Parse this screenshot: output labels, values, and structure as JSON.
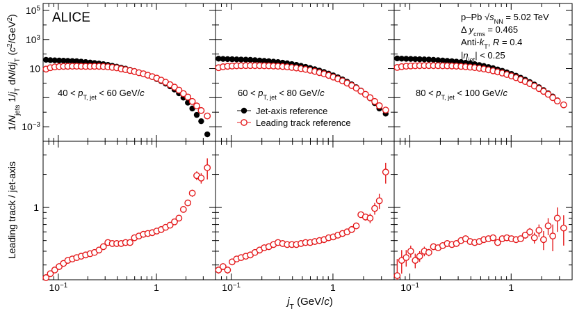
{
  "chart_data": {
    "type": "scatter",
    "x_scale": "log",
    "xlim": [
      0.07,
      4.0
    ],
    "xlabel": "j_T (GeV/c)",
    "xtick_labels": [
      "10^-1",
      "1"
    ],
    "experiment": "ALICE",
    "system_lines": [
      "p–Pb √s_NN = 5.02 TeV",
      "Δ y_cms = 0.465",
      "Anti-k_T, R = 0.4",
      "|η_jet| < 0.25"
    ],
    "legend": [
      {
        "name": "Jet-axis reference",
        "marker": "filled-circle",
        "color": "#000000"
      },
      {
        "name": "Leading track reference",
        "marker": "open-circle",
        "color": "#e41a1c"
      }
    ],
    "top_panel": {
      "ylabel": "1/N_jets 1/j_T dN/dj_T (c^2/GeV^2)",
      "y_scale": "log",
      "ylim": [
        0.0001,
        300000
      ],
      "ytick_labels": [
        "10^-3",
        "10",
        "10^3",
        "10^5"
      ]
    },
    "bottom_panel": {
      "ylabel": "Leading track / jet-axis",
      "y_scale": "log",
      "ylim": [
        0.22,
        4.0
      ],
      "ytick_labels": [
        "1"
      ]
    },
    "panels": [
      {
        "label": "40 < p_T, jet < 60 GeV/c",
        "x": [
          0.075,
          0.083,
          0.092,
          0.102,
          0.113,
          0.125,
          0.139,
          0.154,
          0.171,
          0.19,
          0.211,
          0.234,
          0.26,
          0.288,
          0.32,
          0.355,
          0.394,
          0.437,
          0.485,
          0.538,
          0.597,
          0.663,
          0.736,
          0.817,
          0.907,
          1.007,
          1.118,
          1.241,
          1.377,
          1.528,
          1.696,
          1.883,
          2.09,
          2.32,
          2.575,
          2.858,
          3.3
        ],
        "jet_axis": [
          40,
          38,
          37,
          36,
          35,
          34,
          33,
          32,
          30,
          28,
          26,
          24,
          22,
          20,
          18,
          15.5,
          13.5,
          11.5,
          9.8,
          8.2,
          6.8,
          5.5,
          4.4,
          3.4,
          2.6,
          1.9,
          1.35,
          0.92,
          0.6,
          0.36,
          0.2,
          0.1,
          0.045,
          0.018,
          0.0065,
          0.0024,
          0.0003
        ],
        "leading_track": [
          9.2,
          11.5,
          13,
          13.7,
          14.2,
          14.4,
          14.5,
          14.5,
          14.4,
          14.2,
          14.2,
          14.4,
          14.3,
          13.9,
          13.2,
          12.2,
          11.2,
          9.5,
          8.4,
          7.3,
          6.3,
          5.2,
          4.4,
          3.5,
          2.8,
          2.2,
          1.6,
          1.15,
          0.78,
          0.53,
          0.33,
          0.19,
          0.11,
          0.055,
          0.027,
          0.013,
          0.0055
        ],
        "ratio": [
          0.23,
          0.25,
          0.27,
          0.29,
          0.31,
          0.33,
          0.34,
          0.35,
          0.36,
          0.37,
          0.38,
          0.39,
          0.41,
          0.44,
          0.48,
          0.47,
          0.47,
          0.47,
          0.48,
          0.48,
          0.53,
          0.55,
          0.57,
          0.58,
          0.59,
          0.61,
          0.63,
          0.66,
          0.69,
          0.74,
          0.8,
          0.96,
          1.1,
          1.35,
          1.95,
          1.85,
          2.3
        ],
        "ratio_err": [
          0.01,
          0.01,
          0.01,
          0.01,
          0.01,
          0.01,
          0.01,
          0.01,
          0.01,
          0.01,
          0.01,
          0.01,
          0.01,
          0.01,
          0.01,
          0.01,
          0.01,
          0.01,
          0.01,
          0.01,
          0.01,
          0.01,
          0.01,
          0.01,
          0.01,
          0.01,
          0.01,
          0.01,
          0.01,
          0.02,
          0.02,
          0.04,
          0.06,
          0.1,
          0.18,
          0.2,
          0.5
        ]
      },
      {
        "label": "60 < p_T, jet < 80 GeV/c",
        "x": [
          0.075,
          0.083,
          0.092,
          0.102,
          0.113,
          0.125,
          0.139,
          0.154,
          0.171,
          0.19,
          0.211,
          0.234,
          0.26,
          0.288,
          0.32,
          0.355,
          0.394,
          0.437,
          0.485,
          0.538,
          0.597,
          0.663,
          0.736,
          0.817,
          0.907,
          1.007,
          1.118,
          1.241,
          1.377,
          1.528,
          1.696,
          1.883,
          2.09,
          2.32,
          2.575,
          2.858,
          3.3
        ],
        "jet_axis": [
          48,
          46,
          45,
          44,
          43,
          42,
          41,
          40,
          38,
          36,
          34,
          32,
          30,
          28,
          25.5,
          23,
          20.5,
          18,
          15.5,
          13.2,
          11,
          9,
          7.3,
          5.8,
          4.5,
          3.4,
          2.5,
          1.8,
          1.25,
          0.82,
          0.52,
          0.31,
          0.17,
          0.09,
          0.042,
          0.018,
          0.008
        ],
        "leading_track": [
          11.5,
          13.3,
          14.4,
          15,
          15.5,
          15.8,
          16,
          16,
          15.9,
          15.8,
          15.6,
          15.4,
          15,
          14.5,
          13.9,
          13,
          12,
          11,
          9.9,
          8.8,
          7.6,
          6.4,
          5.3,
          4.3,
          3.4,
          2.6,
          1.95,
          1.42,
          1,
          0.68,
          0.45,
          0.28,
          0.17,
          0.1,
          0.055,
          0.028,
          0.014
        ],
        "ratio": [
          0.27,
          0.29,
          0.27,
          0.32,
          0.34,
          0.35,
          0.36,
          0.37,
          0.39,
          0.41,
          0.43,
          0.44,
          0.46,
          0.48,
          0.47,
          0.46,
          0.46,
          0.46,
          0.47,
          0.48,
          0.48,
          0.49,
          0.5,
          0.51,
          0.53,
          0.54,
          0.56,
          0.58,
          0.6,
          0.63,
          0.68,
          0.86,
          0.82,
          0.8,
          0.98,
          1.15,
          2.1
        ],
        "ratio_err": [
          0.02,
          0.02,
          0.02,
          0.01,
          0.01,
          0.01,
          0.01,
          0.01,
          0.01,
          0.01,
          0.01,
          0.01,
          0.01,
          0.01,
          0.01,
          0.01,
          0.01,
          0.01,
          0.01,
          0.01,
          0.01,
          0.01,
          0.01,
          0.01,
          0.01,
          0.01,
          0.01,
          0.01,
          0.02,
          0.02,
          0.03,
          0.05,
          0.06,
          0.08,
          0.12,
          0.18,
          0.45
        ]
      },
      {
        "label": "80 < p_T, jet < 100 GeV/c",
        "x": [
          0.075,
          0.083,
          0.092,
          0.102,
          0.113,
          0.125,
          0.139,
          0.154,
          0.171,
          0.19,
          0.211,
          0.234,
          0.26,
          0.288,
          0.32,
          0.355,
          0.394,
          0.437,
          0.485,
          0.538,
          0.597,
          0.663,
          0.736,
          0.817,
          0.907,
          1.007,
          1.118,
          1.241,
          1.377,
          1.528,
          1.696,
          1.883,
          2.09,
          2.32,
          2.575,
          2.858,
          3.3
        ],
        "jet_axis": [
          50,
          48,
          47,
          46,
          45,
          44,
          43,
          42,
          40,
          38,
          36,
          34,
          32,
          30,
          28,
          25,
          22.5,
          20,
          17.5,
          15,
          12.7,
          10.6,
          8.7,
          7,
          5.5,
          4.3,
          3.2,
          2.35,
          1.7,
          1.18,
          0.8,
          0.52,
          0.33,
          0.2,
          0.12,
          0.065,
          0.03
        ],
        "leading_track": [
          12,
          13.6,
          14.6,
          15.2,
          15.6,
          15.9,
          16,
          16,
          15.9,
          15.8,
          15.6,
          15.4,
          15.1,
          14.7,
          14.2,
          13.4,
          12.5,
          11.6,
          10.5,
          9.4,
          8.2,
          7,
          5.9,
          4.9,
          3.9,
          3.1,
          2.35,
          1.76,
          1.29,
          0.92,
          0.63,
          0.42,
          0.27,
          0.17,
          0.1,
          0.059,
          0.032
        ],
        "ratio": [
          0.24,
          0.33,
          0.35,
          0.4,
          0.33,
          0.36,
          0.4,
          0.39,
          0.44,
          0.43,
          0.45,
          0.47,
          0.46,
          0.47,
          0.5,
          0.52,
          0.49,
          0.48,
          0.49,
          0.51,
          0.52,
          0.53,
          0.48,
          0.52,
          0.53,
          0.52,
          0.51,
          0.52,
          0.56,
          0.6,
          0.53,
          0.62,
          0.51,
          0.68,
          0.55,
          0.8,
          0.65
        ],
        "ratio_err": [
          0.1,
          0.08,
          0.06,
          0.05,
          0.05,
          0.04,
          0.04,
          0.03,
          0.03,
          0.02,
          0.02,
          0.02,
          0.02,
          0.02,
          0.02,
          0.02,
          0.02,
          0.02,
          0.02,
          0.02,
          0.02,
          0.02,
          0.02,
          0.02,
          0.03,
          0.03,
          0.03,
          0.03,
          0.04,
          0.05,
          0.06,
          0.08,
          0.1,
          0.12,
          0.15,
          0.2,
          0.2
        ]
      }
    ]
  }
}
